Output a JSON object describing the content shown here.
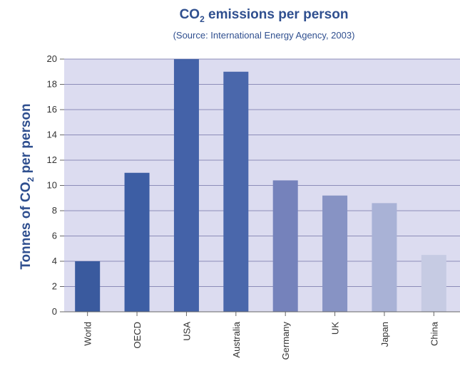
{
  "chart_data": {
    "type": "bar",
    "title_main": "CO",
    "title_sub": "2",
    "title_rest": " emissions per person",
    "subtitle": "(Source: International Energy Agency, 2003)",
    "ylabel_main": "Tonnes of CO",
    "ylabel_sub": "2",
    "ylabel_rest": " per person",
    "xlabel": "",
    "categories": [
      "World",
      "OECD",
      "USA",
      "Australia",
      "Germany",
      "UK",
      "Japan",
      "China"
    ],
    "values": [
      4,
      11,
      20,
      19,
      10.4,
      9.2,
      8.6,
      4.5
    ],
    "ylim": [
      0,
      20
    ],
    "yticks": [
      0,
      2,
      4,
      6,
      8,
      10,
      12,
      14,
      16,
      18,
      20
    ],
    "grid": true,
    "legend": "none",
    "colors": {
      "title": "#2f4f8f",
      "plot_bg": "#dcdcf0",
      "grid": "#8c8cb8",
      "bars": [
        "#3a5a9e",
        "#3d5ea4",
        "#4462a8",
        "#4a67ab",
        "#7582bb",
        "#8793c4",
        "#a9b2d6",
        "#c6cbe3"
      ]
    }
  }
}
